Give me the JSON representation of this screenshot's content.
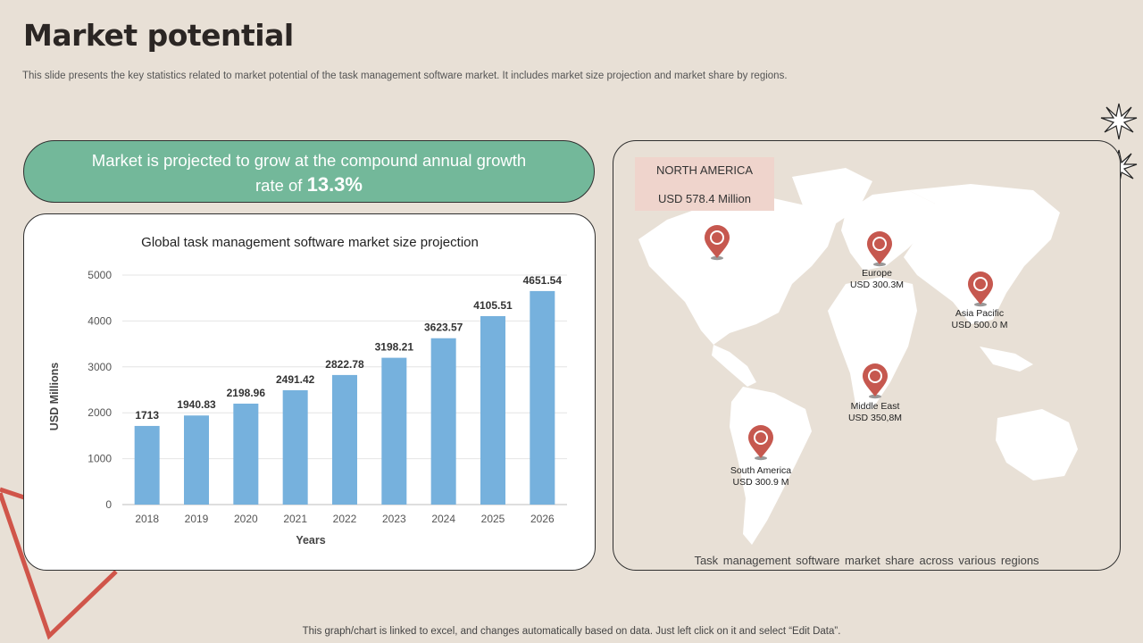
{
  "page": {
    "title": "Market potential",
    "subtitle": "This slide presents the key statistics related to market potential of the task management software market. It includes market size projection and market share by regions.",
    "footer": "This graph/chart is linked to excel, and changes automatically based on data. Just left click on it and select “Edit Data”."
  },
  "growth": {
    "text_line1": "Market is projected to grow at the compound annual growth",
    "text_line2_prefix": "rate of ",
    "rate": "13.3%"
  },
  "colors": {
    "background": "#e8e0d6",
    "pill": "#73b89a",
    "bar": "#76b1dd",
    "pin": "#c6584f",
    "triangle": "#d0554a",
    "na_box": "#efd4cc"
  },
  "chart_data": {
    "type": "bar",
    "title": "Global task management software market size projection",
    "xlabel": "Years",
    "ylabel": "USD Millions",
    "categories": [
      "2018",
      "2019",
      "2020",
      "2021",
      "2022",
      "2023",
      "2024",
      "2025",
      "2026"
    ],
    "values": [
      1713,
      1940.83,
      2198.96,
      2491.42,
      2822.78,
      3198.21,
      3623.57,
      4105.51,
      4651.54
    ],
    "data_labels": [
      "1713",
      "1940.83",
      "2198.96",
      "2491.42",
      "2822.78",
      "3198.21",
      "3623.57",
      "4105.51",
      "4651.54"
    ],
    "ylim": [
      0,
      5000
    ],
    "yticks": [
      "0",
      "1000",
      "2000",
      "3000",
      "4000",
      "5000"
    ],
    "grid": true
  },
  "map": {
    "caption": "Task management software market share across various regions",
    "north_america": {
      "name": "NORTH  AMERICA",
      "value": "USD 578.4 Million"
    },
    "regions": [
      {
        "name": "Europe",
        "value": "USD 300.3M"
      },
      {
        "name": "Asia Pacific",
        "value": "USD 500.0 M"
      },
      {
        "name": "Middle East",
        "value": "USD 350,8M"
      },
      {
        "name": "South America",
        "value": "USD 300.9 M"
      }
    ]
  },
  "icons": {
    "star": "starburst-icon",
    "pin": "map-pin-icon"
  }
}
